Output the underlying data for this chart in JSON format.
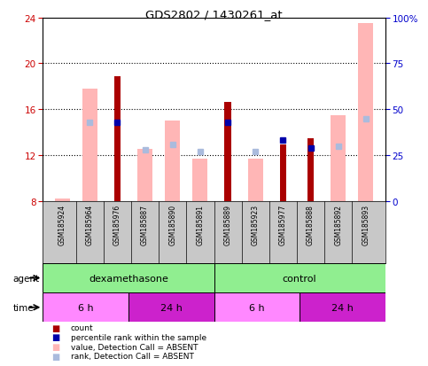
{
  "title": "GDS2802 / 1430261_at",
  "samples": [
    "GSM185924",
    "GSM185964",
    "GSM185976",
    "GSM185887",
    "GSM185890",
    "GSM185891",
    "GSM185889",
    "GSM185923",
    "GSM185977",
    "GSM185888",
    "GSM185892",
    "GSM185893"
  ],
  "value_absent": [
    8.2,
    17.8,
    null,
    12.5,
    15.0,
    11.65,
    null,
    11.65,
    null,
    null,
    15.5,
    23.5
  ],
  "count": [
    null,
    null,
    18.9,
    null,
    null,
    null,
    16.65,
    null,
    12.9,
    13.5,
    null,
    null
  ],
  "rank_absent_pct": [
    null,
    43.0,
    null,
    28.0,
    31.0,
    27.0,
    null,
    27.0,
    null,
    null,
    30.0,
    45.0
  ],
  "percentile_rank_pct": [
    null,
    null,
    43.0,
    null,
    null,
    null,
    43.0,
    null,
    33.0,
    29.0,
    null,
    null
  ],
  "agent_groups": [
    {
      "label": "dexamethasone",
      "start": 0,
      "end": 6,
      "color": "#90EE90"
    },
    {
      "label": "control",
      "start": 6,
      "end": 12,
      "color": "#90EE90"
    }
  ],
  "time_groups": [
    {
      "label": "6 h",
      "start": 0,
      "end": 3,
      "color": "#FF88FF"
    },
    {
      "label": "24 h",
      "start": 3,
      "end": 6,
      "color": "#CC22CC"
    },
    {
      "label": "6 h",
      "start": 6,
      "end": 9,
      "color": "#FF88FF"
    },
    {
      "label": "24 h",
      "start": 9,
      "end": 12,
      "color": "#CC22CC"
    }
  ],
  "ylim_left": [
    8,
    24
  ],
  "ylim_right": [
    0,
    100
  ],
  "yticks_left": [
    8,
    12,
    16,
    20,
    24
  ],
  "yticks_right": [
    0,
    25,
    50,
    75,
    100
  ],
  "left_color": "#CC0000",
  "right_color": "#0000CC",
  "value_absent_color": "#FFB6B6",
  "count_color": "#AA0000",
  "rank_absent_color": "#AABBDD",
  "percentile_color": "#0000AA",
  "bg_color": "#C8C8C8",
  "plot_bg": "#FFFFFF",
  "fig_bg": "#FFFFFF"
}
